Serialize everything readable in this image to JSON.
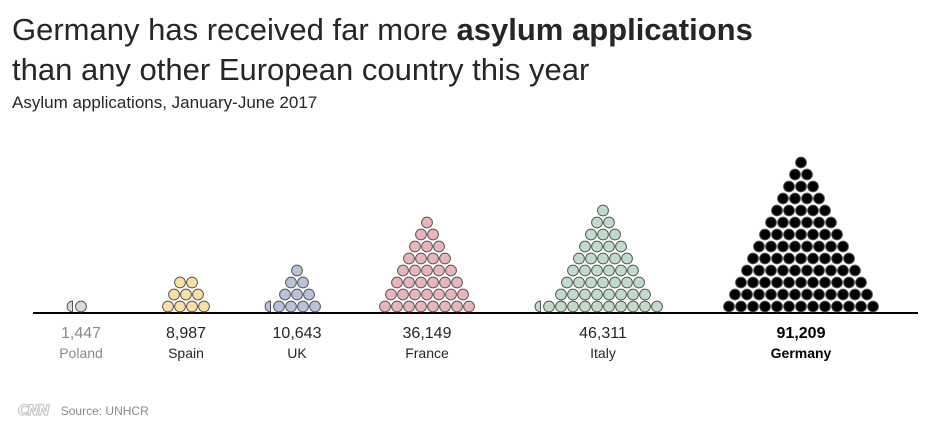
{
  "title": {
    "part1": "Germany has received far more ",
    "bold": "asylum applications",
    "part2": "than any other European country this year"
  },
  "subtitle": "Asylum applications, January-June 2017",
  "chart_data": {
    "type": "pictogram",
    "title": "Germany has received far more asylum applications than any other European country this year",
    "subtitle": "Asylum applications, January-June 2017",
    "categories": [
      "Poland",
      "Spain",
      "UK",
      "France",
      "Italy",
      "Germany"
    ],
    "values": [
      1447,
      8987,
      10643,
      36149,
      46311,
      91209
    ],
    "value_labels": [
      "1,447",
      "8,987",
      "10,643",
      "36,149",
      "46,311",
      "91,209"
    ],
    "units_per_dot": 1000,
    "dot_counts": [
      1.5,
      9,
      10.5,
      36,
      46.5,
      91
    ],
    "highlight": "Germany",
    "colors": {
      "Poland": "#d9d9d9",
      "Spain": "#f7e0a3",
      "UK": "#b8c2d8",
      "France": "#e8b6ba",
      "Italy": "#c0dcc8",
      "Germany": "#000000"
    },
    "label_colors": {
      "Poland": "#8a8a8a",
      "Spain": "#262626",
      "UK": "#262626",
      "France": "#262626",
      "Italy": "#262626",
      "Germany": "#000000"
    },
    "dot_stroke": "#555555",
    "baseline_color": "#000000"
  },
  "footer": {
    "logo": "CNN",
    "source": "Source: UNHCR"
  }
}
